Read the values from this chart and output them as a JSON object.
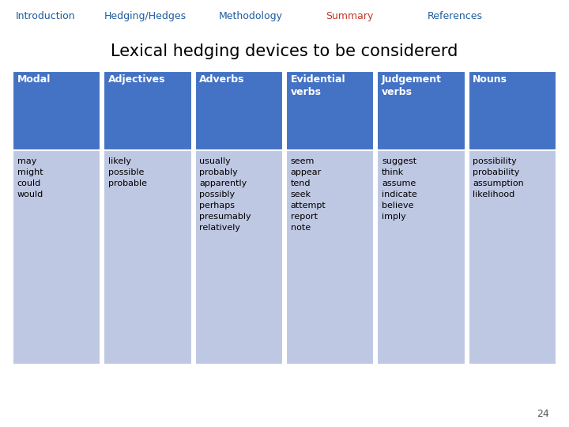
{
  "nav_items": [
    "Introduction",
    "Hedging/Hedges",
    "Methodology",
    "Summary",
    "References"
  ],
  "nav_active": "Summary",
  "nav_color": "#1F5C9E",
  "nav_active_color": "#C0392B",
  "nav_bg": "#DCDCDC",
  "title": "Lexical hedging devices to be considererd",
  "title_fontsize": 15,
  "header_bg": "#4472C4",
  "header_text_color": "#FFFFFF",
  "body_bg": "#BFC8E2",
  "body_text_color": "#000000",
  "col_headers": [
    "Modal",
    "Adjectives",
    "Adverbs",
    "Evidential\nverbs",
    "Judgement\nverbs",
    "Nouns"
  ],
  "col_data": [
    "may\nmight\ncould\nwould",
    "likely\npossible\nprobable",
    "usually\nprobably\napparently\npossibly\nperhaps\npresumably\nrelatively",
    "seem\nappear\ntend\nseek\nattempt\nreport\nnote",
    "suggest\nthink\nassume\nindicate\nbelieve\nimply",
    "possibility\nprobability\nassumption\nlikelihood"
  ],
  "page_number": "24",
  "fig_bg": "#FFFFFF",
  "nav_fontsize": 9,
  "body_fontsize": 8,
  "header_fontsize": 9
}
